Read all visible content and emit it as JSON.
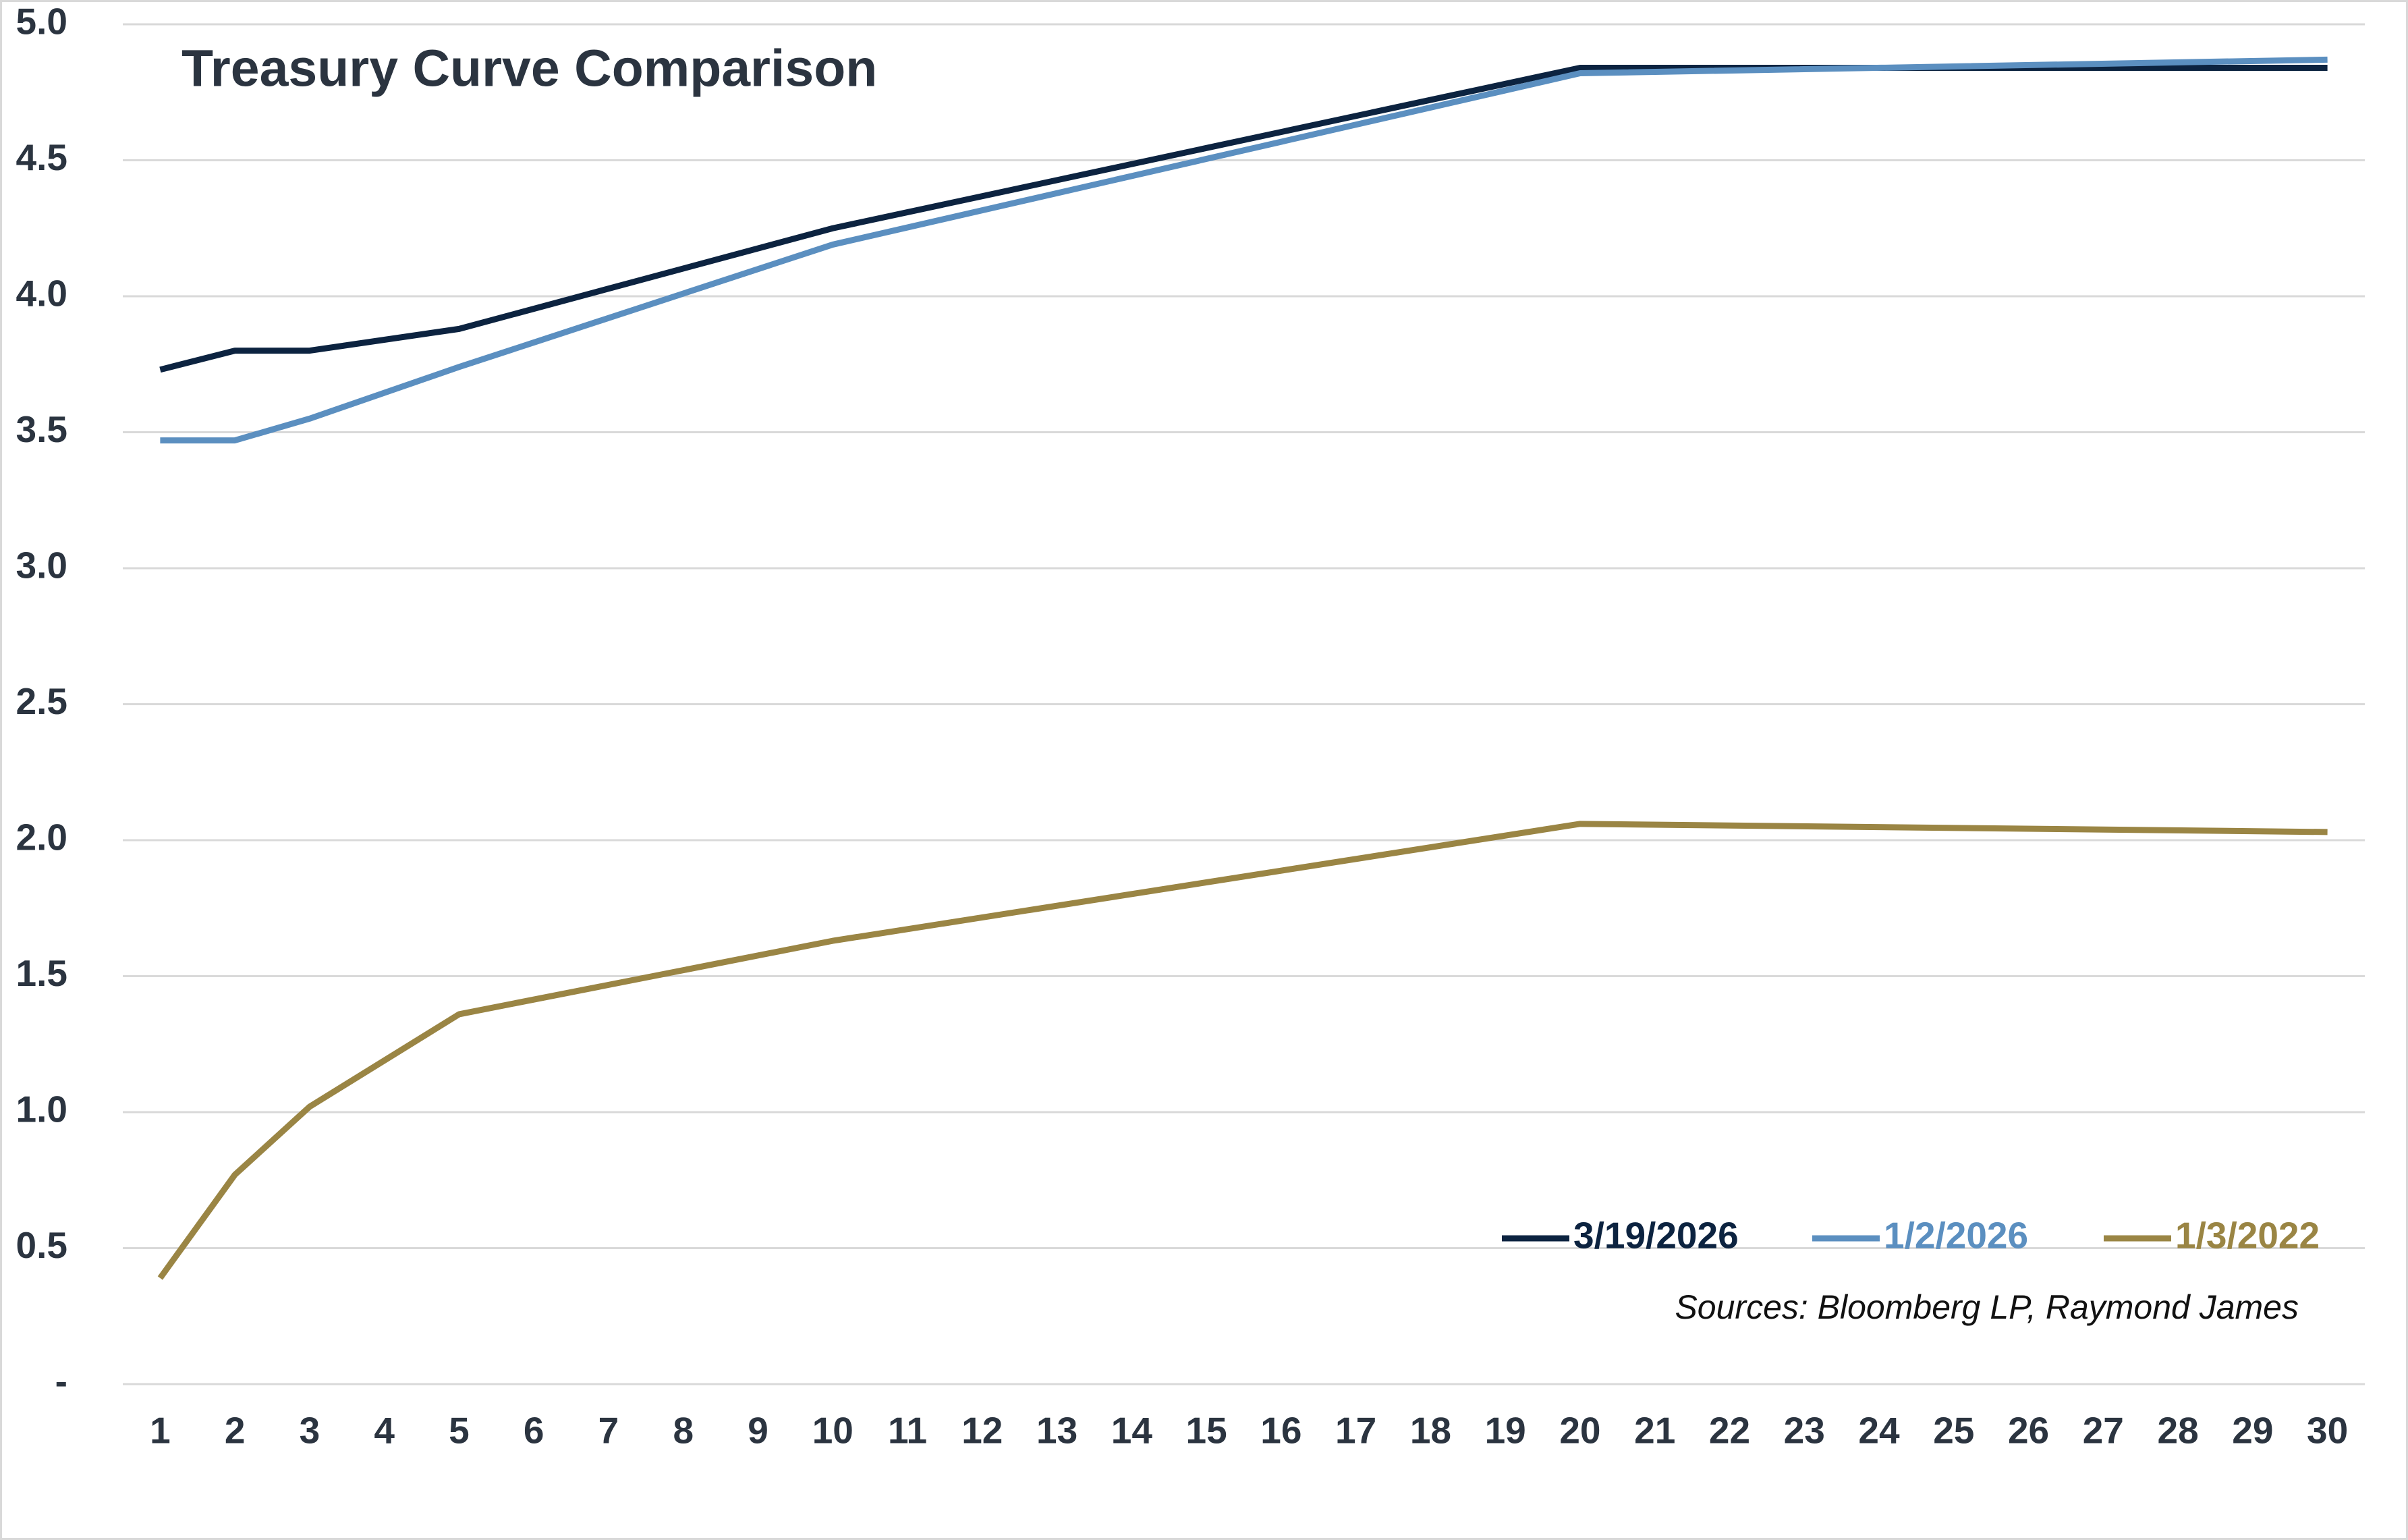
{
  "chart_data": {
    "type": "line",
    "title": "Treasury Curve Comparison",
    "x": [
      1,
      2,
      3,
      5,
      10,
      20,
      30
    ],
    "series": [
      {
        "name": "3/19/2026",
        "color": "#0c2340",
        "values": [
          3.73,
          3.8,
          3.8,
          3.88,
          4.25,
          4.84,
          4.84
        ]
      },
      {
        "name": "1/2/2026",
        "color": "#5b8fc0",
        "values": [
          3.47,
          3.47,
          3.55,
          3.74,
          4.19,
          4.82,
          4.87
        ]
      },
      {
        "name": "1/3/2022",
        "color": "#9a8544",
        "values": [
          0.39,
          0.77,
          1.02,
          1.36,
          1.63,
          2.06,
          2.03
        ]
      }
    ],
    "xlim": [
      0.5,
      30.5
    ],
    "xticks": [
      1,
      2,
      3,
      4,
      5,
      6,
      7,
      8,
      9,
      10,
      11,
      12,
      13,
      14,
      15,
      16,
      17,
      18,
      19,
      20,
      21,
      22,
      23,
      24,
      25,
      26,
      27,
      28,
      29,
      30
    ],
    "ylim": [
      0,
      5
    ],
    "yticks": [
      {
        "value": 0,
        "label": "-"
      },
      0.5,
      {
        "value": 1,
        "label": "1.0"
      },
      1.5,
      {
        "value": 2,
        "label": "2.0"
      },
      2.5,
      {
        "value": 3,
        "label": "3.0"
      },
      3.5,
      {
        "value": 4,
        "label": "4.0"
      },
      4.5,
      {
        "value": 5,
        "label": "5.0"
      }
    ],
    "grid": true,
    "legend": "lower right",
    "source": "Sources: Bloomberg LP, Raymond James"
  }
}
